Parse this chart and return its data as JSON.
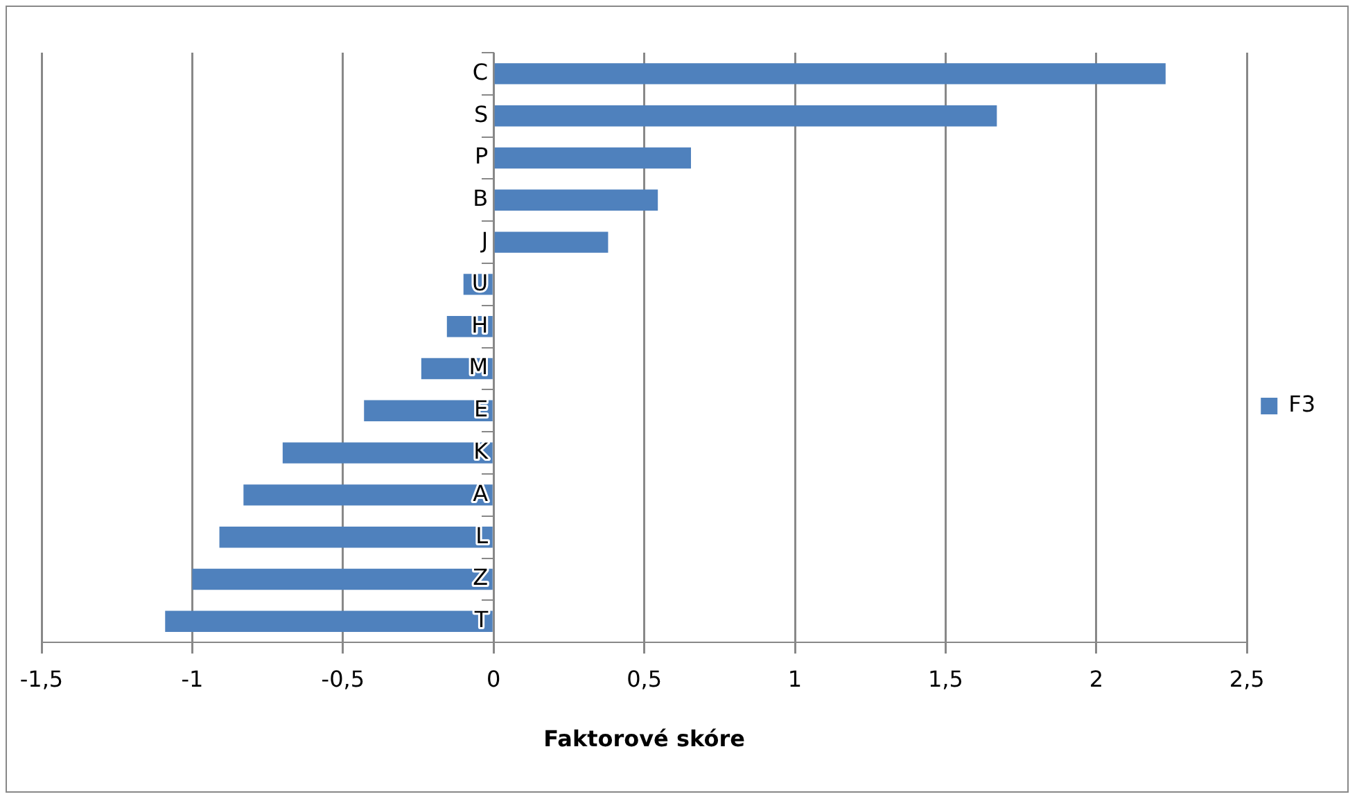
{
  "chart_data": {
    "type": "bar",
    "orientation": "horizontal",
    "xlabel": "Faktorové skóre",
    "categories": [
      "C",
      "S",
      "P",
      "B",
      "J",
      "U",
      "H",
      "M",
      "E",
      "K",
      "A",
      "L",
      "Z",
      "T"
    ],
    "series": [
      {
        "name": "F3",
        "color": "#4f81bd",
        "values": [
          2.23,
          1.67,
          0.655,
          0.545,
          0.38,
          -0.1,
          -0.155,
          -0.24,
          -0.43,
          -0.7,
          -0.83,
          -0.91,
          -1.0,
          -1.09
        ]
      }
    ],
    "xlim": [
      -1.5,
      2.5
    ],
    "xticks": [
      {
        "value": -1.5,
        "label": "-1,5"
      },
      -1,
      {
        "value": -0.5,
        "label": "-0,5"
      },
      0,
      {
        "value": 0.5,
        "label": "0,5"
      },
      1,
      {
        "value": 1.5,
        "label": "1,5"
      },
      2,
      {
        "value": 2.5,
        "label": "2,5"
      }
    ],
    "grid": "x",
    "legend": "right"
  }
}
